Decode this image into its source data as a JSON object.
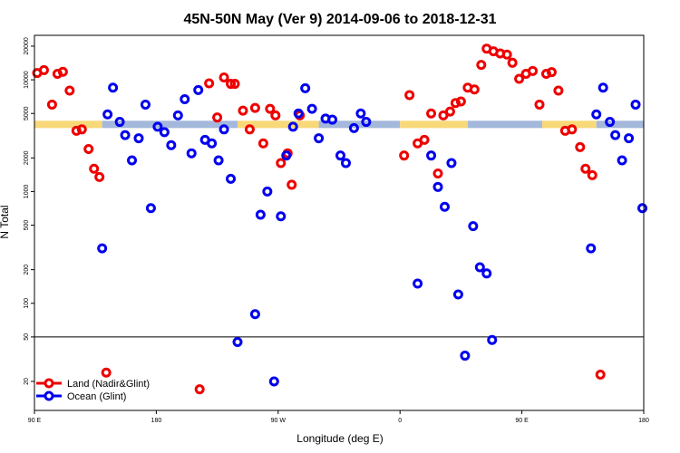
{
  "chart_data": {
    "type": "scatter",
    "title": "45N-50N May (Ver 9)   2014-09-06 to 2018-12-31",
    "xlabel": "Longitude (deg E)",
    "ylabel": "N Total",
    "y_scale": "log",
    "ylim": [
      11,
      25000
    ],
    "x_axis": {
      "domain_from_center": [
        -180,
        180
      ],
      "center_lon": 270,
      "tick_labels": [
        "90 E",
        "180",
        "90 W",
        "0",
        "90 E",
        "180"
      ],
      "ticks_at_lon": [
        90,
        180,
        270,
        360,
        450,
        540
      ]
    },
    "y_tick_labels": [
      "20",
      "50",
      "100",
      "200",
      "500",
      "1000",
      "2000",
      "5000",
      "10000",
      "20000"
    ],
    "y_ticks": [
      20,
      50,
      100,
      200,
      500,
      1000,
      2000,
      5000,
      10000,
      20000
    ],
    "reference_line_y": 50,
    "grid": false,
    "legend_position": "bottom-left",
    "band": {
      "y_low": 3700,
      "y_high": 4300,
      "ocean_color": "#a4b8dc",
      "land_color": "#f8d878",
      "segments": [
        {
          "type": "land",
          "x0": 90,
          "x1": 140
        },
        {
          "type": "ocean",
          "x0": 140,
          "x1": 240
        },
        {
          "type": "land",
          "x0": 240,
          "x1": 300
        },
        {
          "type": "ocean",
          "x0": 300,
          "x1": 360
        },
        {
          "type": "land",
          "x0": 360,
          "x1": 410
        },
        {
          "type": "ocean",
          "x0": 410,
          "x1": 465
        },
        {
          "type": "land",
          "x0": 465,
          "x1": 505
        },
        {
          "type": "ocean",
          "x0": 505,
          "x1": 540
        }
      ]
    },
    "series": [
      {
        "name": "Land (Nadir&Glint)",
        "color": "#ee0000",
        "points": [
          [
            92,
            11500
          ],
          [
            97,
            12200
          ],
          [
            103,
            6000
          ],
          [
            107,
            11300
          ],
          [
            111,
            11800
          ],
          [
            116,
            8000
          ],
          [
            121,
            3500
          ],
          [
            125,
            3600
          ],
          [
            130,
            2400
          ],
          [
            134,
            1600
          ],
          [
            138,
            1350
          ],
          [
            143,
            24
          ],
          [
            212,
            17
          ],
          [
            219,
            9300
          ],
          [
            225,
            4600
          ],
          [
            230,
            10500
          ],
          [
            235,
            9200
          ],
          [
            238,
            9200
          ],
          [
            244,
            5300
          ],
          [
            249,
            3600
          ],
          [
            253,
            5600
          ],
          [
            259,
            2700
          ],
          [
            264,
            5500
          ],
          [
            268,
            4800
          ],
          [
            272,
            1800
          ],
          [
            277,
            2200
          ],
          [
            280,
            1150
          ],
          [
            286,
            4800
          ],
          [
            363,
            2100
          ],
          [
            367,
            7300
          ],
          [
            373,
            2700
          ],
          [
            378,
            2900
          ],
          [
            383,
            5000
          ],
          [
            388,
            1450
          ],
          [
            392,
            4800
          ],
          [
            397,
            5200
          ],
          [
            401,
            6200
          ],
          [
            405,
            6400
          ],
          [
            410,
            8500
          ],
          [
            415,
            8200
          ],
          [
            420,
            13600
          ],
          [
            424,
            19000
          ],
          [
            429,
            18000
          ],
          [
            434,
            17200
          ],
          [
            439,
            16800
          ],
          [
            443,
            14200
          ],
          [
            448,
            10200
          ],
          [
            453,
            11300
          ],
          [
            458,
            12000
          ],
          [
            463,
            6000
          ],
          [
            468,
            11300
          ],
          [
            472,
            11700
          ],
          [
            477,
            8000
          ],
          [
            482,
            3500
          ],
          [
            487,
            3600
          ],
          [
            493,
            2500
          ],
          [
            497,
            1600
          ],
          [
            502,
            1400
          ],
          [
            508,
            23
          ]
        ]
      },
      {
        "name": "Ocean (Glint)",
        "color": "#0000ee",
        "points": [
          [
            140,
            310
          ],
          [
            144,
            4900
          ],
          [
            148,
            8500
          ],
          [
            153,
            4200
          ],
          [
            157,
            3200
          ],
          [
            162,
            1900
          ],
          [
            167,
            3000
          ],
          [
            172,
            6000
          ],
          [
            176,
            710
          ],
          [
            181,
            3800
          ],
          [
            186,
            3400
          ],
          [
            191,
            2600
          ],
          [
            196,
            4800
          ],
          [
            201,
            6700
          ],
          [
            206,
            2200
          ],
          [
            211,
            8100
          ],
          [
            216,
            2900
          ],
          [
            221,
            2700
          ],
          [
            226,
            1900
          ],
          [
            230,
            3600
          ],
          [
            235,
            1300
          ],
          [
            240,
            45
          ],
          [
            253,
            80
          ],
          [
            257,
            620
          ],
          [
            262,
            1000
          ],
          [
            267,
            20
          ],
          [
            272,
            600
          ],
          [
            276,
            2100
          ],
          [
            281,
            3800
          ],
          [
            285,
            5000
          ],
          [
            290,
            8400
          ],
          [
            295,
            5500
          ],
          [
            300,
            3000
          ],
          [
            305,
            4500
          ],
          [
            310,
            4400
          ],
          [
            316,
            2100
          ],
          [
            320,
            1800
          ],
          [
            326,
            3700
          ],
          [
            331,
            5000
          ],
          [
            335,
            4200
          ],
          [
            373,
            150
          ],
          [
            383,
            2100
          ],
          [
            388,
            1100
          ],
          [
            393,
            730
          ],
          [
            398,
            1800
          ],
          [
            403,
            120
          ],
          [
            408,
            34
          ],
          [
            414,
            490
          ],
          [
            419,
            210
          ],
          [
            424,
            185
          ],
          [
            428,
            47
          ],
          [
            501,
            310
          ],
          [
            505,
            4900
          ],
          [
            510,
            8500
          ],
          [
            515,
            4200
          ],
          [
            519,
            3200
          ],
          [
            524,
            1900
          ],
          [
            529,
            3000
          ],
          [
            534,
            6000
          ],
          [
            539,
            710
          ]
        ]
      }
    ]
  }
}
